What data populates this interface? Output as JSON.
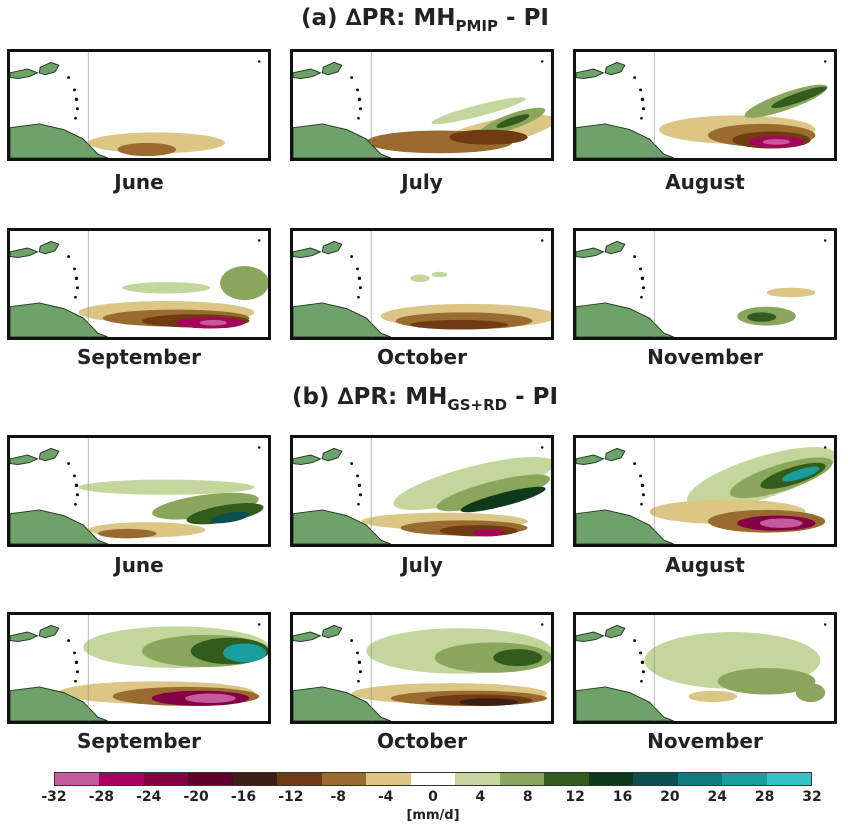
{
  "titles": {
    "a": {
      "prefix": "(a) ",
      "delta": "∆",
      "main": "PR: MH",
      "sub": "PMIP",
      "suffix": " - PI"
    },
    "b": {
      "prefix": "(b) ",
      "delta": "∆",
      "main": "PR: MH",
      "sub": "GS+RD",
      "suffix": " - PI"
    }
  },
  "months": [
    "June",
    "July",
    "August",
    "September",
    "October",
    "November"
  ],
  "colorbar": {
    "ticks": [
      "-32",
      "-28",
      "-24",
      "-20",
      "-16",
      "-12",
      "-8",
      "-4",
      "0",
      "4",
      "8",
      "12",
      "16",
      "20",
      "24",
      "28",
      "32"
    ],
    "colors": [
      "#c55a9c",
      "#a8005e",
      "#830045",
      "#5e0028",
      "#3b1e14",
      "#6f3b12",
      "#9a6b2e",
      "#dcc685",
      "#ffffff",
      "#c3d79c",
      "#8aa65d",
      "#335c1c",
      "#0f3a1a",
      "#0b4f50",
      "#117b7d",
      "#199e9e",
      "#36c3c6"
    ],
    "units": "[mm/d]"
  },
  "colors": {
    "land": "#6fa16b",
    "coast": "#1e3a1e"
  }
}
